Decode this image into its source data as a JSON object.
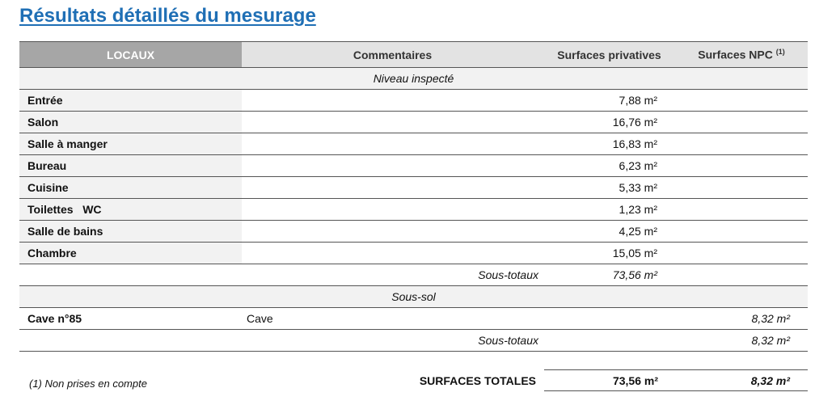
{
  "title": "Résultats détaillés du mesurage",
  "headers": {
    "locaux": "LOCAUX",
    "commentaires": "Commentaires",
    "privatives": "Surfaces privatives",
    "npc": "Surfaces NPC",
    "npc_note": "(1)"
  },
  "sections": [
    {
      "name": "Niveau inspecté",
      "rows": [
        {
          "local": "Entrée",
          "comment": "",
          "priv": "7,88 m²",
          "npc": ""
        },
        {
          "local": "Salon",
          "comment": "",
          "priv": "16,76 m²",
          "npc": ""
        },
        {
          "local": "Salle à manger",
          "comment": "",
          "priv": "16,83 m²",
          "npc": ""
        },
        {
          "local": "Bureau",
          "comment": "",
          "priv": "6,23 m²",
          "npc": ""
        },
        {
          "local": "Cuisine",
          "comment": "",
          "priv": "5,33 m²",
          "npc": ""
        },
        {
          "local": "Toilettes   WC",
          "comment": "",
          "priv": "1,23 m²",
          "npc": ""
        },
        {
          "local": "Salle de bains",
          "comment": "",
          "priv": "4,25 m²",
          "npc": ""
        },
        {
          "local": "Chambre",
          "comment": "",
          "priv": "15,05 m²",
          "npc": ""
        }
      ],
      "subtotal_label": "Sous-totaux",
      "subtotal_priv": "73,56 m²",
      "subtotal_npc": ""
    },
    {
      "name": "Sous-sol",
      "rows": [
        {
          "local": "Cave n°85",
          "comment": "Cave",
          "priv": "",
          "npc": "8,32 m²"
        }
      ],
      "subtotal_label": "Sous-totaux",
      "subtotal_priv": "",
      "subtotal_npc": "8,32 m²"
    }
  ],
  "totals": {
    "label": "SURFACES TOTALES",
    "priv": "73,56 m²",
    "npc": "8,32 m²"
  },
  "footnote": "(1)  Non prises en compte"
}
